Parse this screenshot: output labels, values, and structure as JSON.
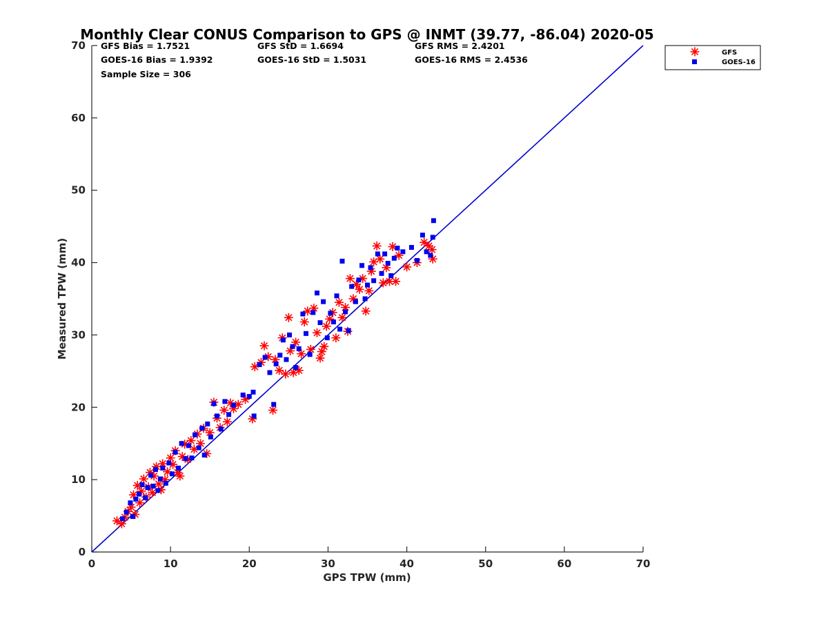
{
  "chart_data": {
    "type": "scatter",
    "title": "Monthly Clear CONUS Comparison to GPS @ INMT (39.77, -86.04) 2020-05",
    "xlabel": "GPS TPW (mm)",
    "ylabel": "Measured TPW (mm)",
    "xlim": [
      0,
      70
    ],
    "ylim": [
      0,
      70
    ],
    "xticks": [
      "0",
      "10",
      "20",
      "30",
      "40",
      "50",
      "60",
      "70"
    ],
    "yticks": [
      "0",
      "10",
      "20",
      "30",
      "40",
      "50",
      "60",
      "70"
    ],
    "grid": false,
    "legend_position": "top-right-outside",
    "stats": [
      [
        "GFS Bias = 1.7521",
        "GFS StD = 1.6694",
        "GFS RMS = 2.4201"
      ],
      [
        "GOES-16 Bias = 1.9392",
        "GOES-16 StD = 1.5031",
        "GOES-16 RMS = 2.4536"
      ],
      [
        "Sample Size = 306",
        "",
        ""
      ]
    ],
    "reference_line": {
      "x": [
        0,
        70
      ],
      "y": [
        0,
        70
      ],
      "color": "#0000cc"
    },
    "series": [
      {
        "name": "GFS",
        "marker": "asterisk",
        "color": "#ff0000",
        "points": [
          [
            3.2,
            4.3
          ],
          [
            3.8,
            3.9
          ],
          [
            4.2,
            4.8
          ],
          [
            4.6,
            5.6
          ],
          [
            5.0,
            6.2
          ],
          [
            5.3,
            7.9
          ],
          [
            5.5,
            5.2
          ],
          [
            5.8,
            9.2
          ],
          [
            6.1,
            6.8
          ],
          [
            6.3,
            8.4
          ],
          [
            6.6,
            10.1
          ],
          [
            6.9,
            7.6
          ],
          [
            7.2,
            9.0
          ],
          [
            7.4,
            11.0
          ],
          [
            7.7,
            8.2
          ],
          [
            7.9,
            10.5
          ],
          [
            8.2,
            11.8
          ],
          [
            8.5,
            9.4
          ],
          [
            8.8,
            8.6
          ],
          [
            9.0,
            12.2
          ],
          [
            9.3,
            10.0
          ],
          [
            9.6,
            11.1
          ],
          [
            10.0,
            13.0
          ],
          [
            10.3,
            12.1
          ],
          [
            10.6,
            14.0
          ],
          [
            10.9,
            11.0
          ],
          [
            11.2,
            10.5
          ],
          [
            11.5,
            13.2
          ],
          [
            11.8,
            14.9
          ],
          [
            12.2,
            12.8
          ],
          [
            12.6,
            15.4
          ],
          [
            13.0,
            14.2
          ],
          [
            13.4,
            16.3
          ],
          [
            13.8,
            15.0
          ],
          [
            14.2,
            17.1
          ],
          [
            14.6,
            13.6
          ],
          [
            15.0,
            16.5
          ],
          [
            15.5,
            20.7
          ],
          [
            15.9,
            18.5
          ],
          [
            16.3,
            17.2
          ],
          [
            16.8,
            19.6
          ],
          [
            17.2,
            18.0
          ],
          [
            17.6,
            20.6
          ],
          [
            18.0,
            19.8
          ],
          [
            18.6,
            20.4
          ],
          [
            19.5,
            21.1
          ],
          [
            20.4,
            18.4
          ],
          [
            20.7,
            25.6
          ],
          [
            21.5,
            26.2
          ],
          [
            21.9,
            28.5
          ],
          [
            22.4,
            27.0
          ],
          [
            23.0,
            19.6
          ],
          [
            23.3,
            26.6
          ],
          [
            23.8,
            25.1
          ],
          [
            24.2,
            29.6
          ],
          [
            24.6,
            24.6
          ],
          [
            25.0,
            32.4
          ],
          [
            25.2,
            27.8
          ],
          [
            25.6,
            24.8
          ],
          [
            25.9,
            29.0
          ],
          [
            26.3,
            25.1
          ],
          [
            26.6,
            27.4
          ],
          [
            27.0,
            31.8
          ],
          [
            27.4,
            33.3
          ],
          [
            27.8,
            28.0
          ],
          [
            28.2,
            33.7
          ],
          [
            28.6,
            30.3
          ],
          [
            29.0,
            26.8
          ],
          [
            29.2,
            27.7
          ],
          [
            29.5,
            28.4
          ],
          [
            29.8,
            31.2
          ],
          [
            30.2,
            32.2
          ],
          [
            30.6,
            33.1
          ],
          [
            31.0,
            29.6
          ],
          [
            31.4,
            34.5
          ],
          [
            31.8,
            32.4
          ],
          [
            32.2,
            33.8
          ],
          [
            32.5,
            30.5
          ],
          [
            32.8,
            37.8
          ],
          [
            33.2,
            35.0
          ],
          [
            33.6,
            37.0
          ],
          [
            34.0,
            36.3
          ],
          [
            34.4,
            37.8
          ],
          [
            34.8,
            33.3
          ],
          [
            35.2,
            36.1
          ],
          [
            35.5,
            38.8
          ],
          [
            35.8,
            40.1
          ],
          [
            36.2,
            42.3
          ],
          [
            36.6,
            40.5
          ],
          [
            37.0,
            37.2
          ],
          [
            37.4,
            39.3
          ],
          [
            37.8,
            37.4
          ],
          [
            38.2,
            42.2
          ],
          [
            38.6,
            37.4
          ],
          [
            39.0,
            41.0
          ],
          [
            40.0,
            39.4
          ],
          [
            41.3,
            40.0
          ],
          [
            42.2,
            42.8
          ],
          [
            42.8,
            42.3
          ],
          [
            43.3,
            40.5
          ],
          [
            43.2,
            41.8
          ]
        ]
      },
      {
        "name": "GOES-16",
        "marker": "square",
        "color": "#0000ee",
        "points": [
          [
            3.9,
            4.6
          ],
          [
            4.4,
            5.5
          ],
          [
            4.9,
            6.8
          ],
          [
            5.2,
            4.9
          ],
          [
            5.6,
            7.3
          ],
          [
            6.0,
            8.0
          ],
          [
            6.4,
            9.3
          ],
          [
            6.8,
            7.5
          ],
          [
            7.1,
            8.9
          ],
          [
            7.5,
            10.6
          ],
          [
            7.8,
            9.1
          ],
          [
            8.1,
            11.4
          ],
          [
            8.4,
            8.5
          ],
          [
            8.7,
            10.1
          ],
          [
            9.0,
            11.6
          ],
          [
            9.4,
            9.5
          ],
          [
            9.8,
            12.3
          ],
          [
            10.2,
            10.8
          ],
          [
            10.6,
            13.8
          ],
          [
            11.0,
            11.6
          ],
          [
            11.4,
            15.0
          ],
          [
            11.9,
            12.9
          ],
          [
            12.3,
            14.7
          ],
          [
            12.7,
            13.0
          ],
          [
            13.1,
            16.2
          ],
          [
            13.6,
            14.4
          ],
          [
            14.0,
            17.1
          ],
          [
            14.3,
            13.4
          ],
          [
            14.7,
            17.7
          ],
          [
            15.1,
            15.9
          ],
          [
            15.5,
            20.5
          ],
          [
            15.9,
            18.8
          ],
          [
            16.4,
            17.0
          ],
          [
            16.9,
            20.8
          ],
          [
            17.4,
            19.0
          ],
          [
            18.0,
            20.3
          ],
          [
            19.2,
            21.7
          ],
          [
            20.0,
            21.5
          ],
          [
            20.5,
            22.1
          ],
          [
            20.6,
            18.8
          ],
          [
            21.3,
            25.9
          ],
          [
            22.0,
            26.9
          ],
          [
            22.6,
            24.8
          ],
          [
            23.1,
            20.4
          ],
          [
            23.4,
            26.0
          ],
          [
            23.9,
            27.2
          ],
          [
            24.3,
            29.3
          ],
          [
            24.7,
            26.6
          ],
          [
            25.1,
            30.0
          ],
          [
            25.5,
            28.4
          ],
          [
            25.9,
            25.5
          ],
          [
            26.3,
            28.1
          ],
          [
            26.8,
            32.9
          ],
          [
            27.2,
            30.2
          ],
          [
            27.7,
            27.3
          ],
          [
            28.1,
            33.1
          ],
          [
            28.6,
            35.8
          ],
          [
            29.0,
            31.7
          ],
          [
            29.4,
            34.6
          ],
          [
            29.9,
            29.6
          ],
          [
            30.3,
            33.0
          ],
          [
            30.7,
            31.8
          ],
          [
            31.1,
            35.4
          ],
          [
            31.5,
            30.8
          ],
          [
            31.8,
            40.2
          ],
          [
            32.2,
            33.2
          ],
          [
            32.6,
            30.6
          ],
          [
            33.0,
            36.7
          ],
          [
            33.5,
            34.6
          ],
          [
            33.9,
            37.6
          ],
          [
            34.3,
            39.6
          ],
          [
            34.7,
            35.0
          ],
          [
            35.0,
            36.9
          ],
          [
            35.4,
            39.3
          ],
          [
            35.8,
            37.5
          ],
          [
            36.3,
            41.2
          ],
          [
            36.8,
            38.5
          ],
          [
            37.2,
            41.2
          ],
          [
            37.6,
            39.9
          ],
          [
            38.0,
            38.2
          ],
          [
            38.4,
            40.6
          ],
          [
            38.8,
            42.0
          ],
          [
            39.5,
            41.5
          ],
          [
            40.6,
            42.1
          ],
          [
            41.3,
            40.3
          ],
          [
            42.0,
            43.8
          ],
          [
            42.5,
            41.5
          ],
          [
            43.0,
            41.0
          ],
          [
            43.3,
            43.5
          ],
          [
            43.4,
            45.8
          ]
        ]
      }
    ]
  }
}
